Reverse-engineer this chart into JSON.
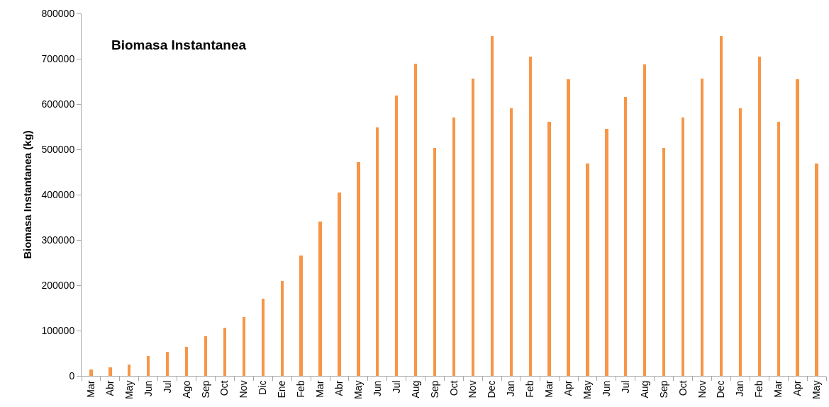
{
  "chart_data": {
    "type": "bar",
    "title": "Biomasa Instantanea",
    "ylabel": "Biomasa Instantanea (kg)",
    "categories": [
      "Mar",
      "Abr",
      "May",
      "Jun",
      "Jul",
      "Ago",
      "Sep",
      "Oct",
      "Nov",
      "Dic",
      "Ene",
      "Feb",
      "Mar",
      "Abr",
      "May",
      "Jun",
      "Jul",
      "Aug",
      "Sep",
      "Oct",
      "Nov",
      "Dec",
      "Jan",
      "Feb",
      "Mar",
      "Apr",
      "May",
      "Jun",
      "Jul",
      "Aug",
      "Sep",
      "Oct",
      "Nov",
      "Dec",
      "Jan",
      "Feb",
      "Mar",
      "Apr",
      "May"
    ],
    "values": [
      14000,
      19000,
      25000,
      44000,
      53000,
      64000,
      88000,
      106000,
      130000,
      171000,
      209000,
      266000,
      341000,
      405000,
      472000,
      548000,
      619000,
      689000,
      503000,
      571000,
      656000,
      750000,
      591000,
      704000,
      561000,
      654000,
      468000,
      546000,
      616000,
      687000,
      503000,
      571000,
      656000,
      750000,
      591000,
      704000,
      561000,
      654000,
      468000
    ],
    "color": "#f79646",
    "ylim": [
      0,
      800000
    ],
    "yticks": [
      0,
      100000,
      200000,
      300000,
      400000,
      500000,
      600000,
      700000,
      800000
    ],
    "grid": false
  }
}
